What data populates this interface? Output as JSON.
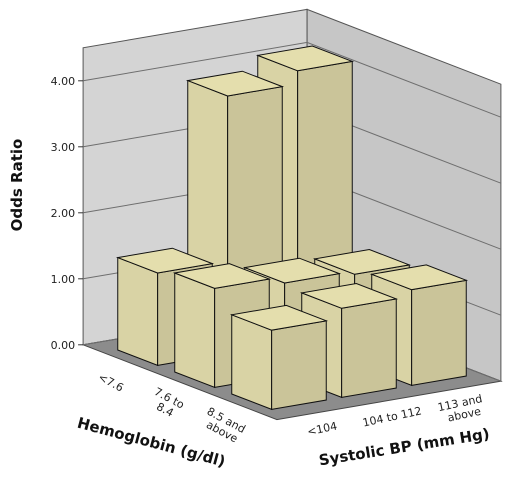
{
  "chart_data": {
    "type": "bar3d",
    "y_label": "Odds Ratio",
    "x_label": "Systolic BP (mm Hg)",
    "z_label": "Hemoglobin (g/dl)",
    "categories": [
      "<104",
      "104 to 112",
      "113 and above"
    ],
    "series": [
      {
        "name": "<7.6",
        "color": "#d9d3a5",
        "values": [
          1.4,
          3.9,
          4.1
        ]
      },
      {
        "name": "7.6 to 8.4",
        "color": "#d9d3a5",
        "values": [
          1.5,
          1.4,
          1.35
        ]
      },
      {
        "name": "8.5 and above",
        "color": "#d9d3a5",
        "values": [
          1.2,
          1.35,
          1.45
        ]
      }
    ],
    "ylim": [
      0,
      4.5
    ],
    "yticks": [
      {
        "value": 0,
        "label": "0.00"
      },
      {
        "value": 1,
        "label": "1.00"
      },
      {
        "value": 2,
        "label": "2.00"
      },
      {
        "value": 3,
        "label": "3.00"
      },
      {
        "value": 4,
        "label": "4.00"
      }
    ],
    "grid": true
  }
}
